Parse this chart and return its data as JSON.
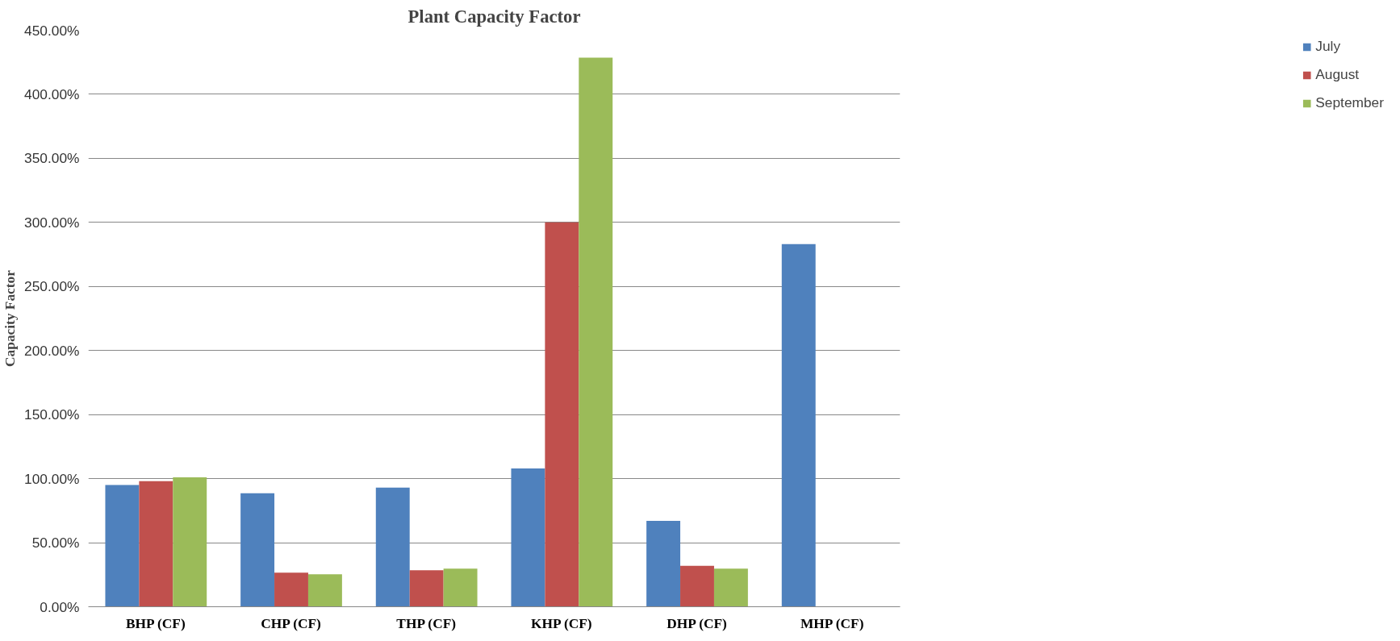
{
  "chart_data": {
    "type": "bar",
    "title": "Plant Capacity Factor",
    "ylabel": "Capacity Factor",
    "categories": [
      "BHP (CF)",
      "CHP (CF)",
      "THP (CF)",
      "KHP (CF)",
      "DHP (CF)",
      "MHP (CF)"
    ],
    "series": [
      {
        "name": "July",
        "color": "#4f81bd",
        "values": [
          95,
          88.6,
          93,
          108,
          67,
          283
        ]
      },
      {
        "name": "August",
        "color": "#c0504d",
        "values": [
          98,
          26.6,
          28.5,
          300,
          32,
          null
        ]
      },
      {
        "name": "September",
        "color": "#9bbb59",
        "values": [
          101,
          25.3,
          29.7,
          428.6,
          29.7,
          null
        ]
      }
    ],
    "ylim": [
      0,
      450
    ],
    "yticks": [
      {
        "value": 0,
        "label": "0.00%"
      },
      {
        "value": 50,
        "label": "50.00%"
      },
      {
        "value": 100,
        "label": "100.00%"
      },
      {
        "value": 150,
        "label": "150.00%"
      },
      {
        "value": 200,
        "label": "200.00%"
      },
      {
        "value": 250,
        "label": "250.00%"
      },
      {
        "value": 300,
        "label": "300.00%"
      },
      {
        "value": 350,
        "label": "350.00%"
      },
      {
        "value": 400,
        "label": "400.00%"
      },
      {
        "value": 450,
        "label": "450.00%"
      }
    ],
    "grid": "y",
    "legend": "right"
  }
}
